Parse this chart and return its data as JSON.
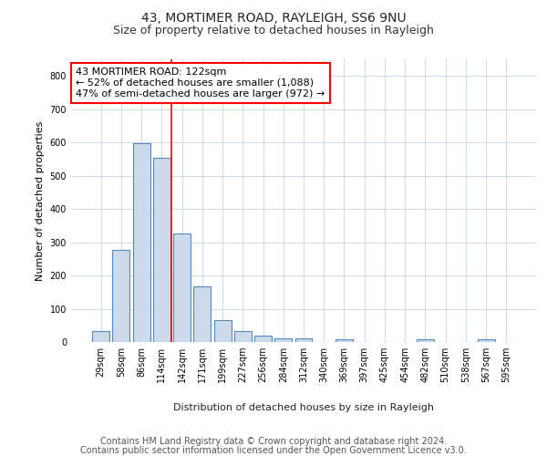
{
  "title": "43, MORTIMER ROAD, RAYLEIGH, SS6 9NU",
  "subtitle": "Size of property relative to detached houses in Rayleigh",
  "xlabel": "Distribution of detached houses by size in Rayleigh",
  "ylabel": "Number of detached properties",
  "categories": [
    "29sqm",
    "58sqm",
    "86sqm",
    "114sqm",
    "142sqm",
    "171sqm",
    "199sqm",
    "227sqm",
    "256sqm",
    "284sqm",
    "312sqm",
    "340sqm",
    "369sqm",
    "397sqm",
    "425sqm",
    "454sqm",
    "482sqm",
    "510sqm",
    "538sqm",
    "567sqm",
    "595sqm"
  ],
  "values": [
    33,
    278,
    597,
    553,
    325,
    168,
    65,
    33,
    18,
    10,
    10,
    0,
    9,
    0,
    0,
    0,
    7,
    0,
    0,
    7,
    0
  ],
  "bar_color": "#ccdaeb",
  "bar_edge_color": "#5588bb",
  "vline_color": "red",
  "vline_pos": 3.5,
  "annotation_text": "43 MORTIMER ROAD: 122sqm\n← 52% of detached houses are smaller (1,088)\n47% of semi-detached houses are larger (972) →",
  "annotation_box_color": "white",
  "annotation_box_edge": "red",
  "ylim": [
    0,
    850
  ],
  "yticks": [
    0,
    100,
    200,
    300,
    400,
    500,
    600,
    700,
    800
  ],
  "footer_line1": "Contains HM Land Registry data © Crown copyright and database right 2024.",
  "footer_line2": "Contains public sector information licensed under the Open Government Licence v3.0.",
  "bg_color": "#ffffff",
  "plot_bg_color": "#ffffff",
  "grid_color": "#d0d8e8",
  "title_fontsize": 10,
  "subtitle_fontsize": 9,
  "axis_label_fontsize": 8,
  "tick_fontsize": 7,
  "annotation_fontsize": 8,
  "footer_fontsize": 7
}
